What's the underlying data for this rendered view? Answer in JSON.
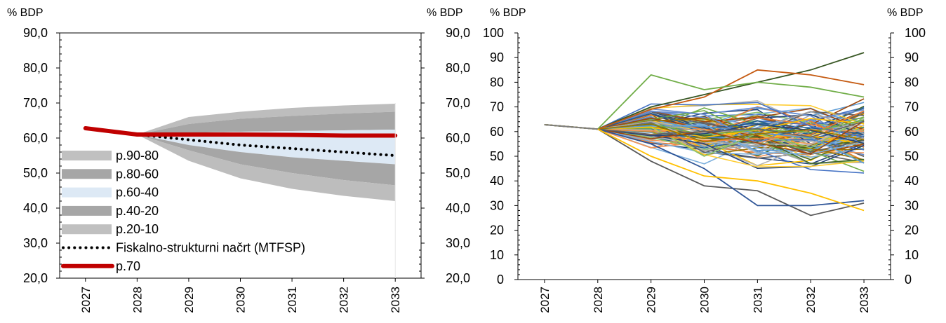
{
  "colors": {
    "band_outer": "#bdbdbd",
    "band_mid": "#a6a6a6",
    "band_center": "#dde9f5",
    "scenario_line": "#c00000",
    "mtfsp_line": "#000000"
  },
  "chart_data": [
    {
      "type": "area",
      "title": "",
      "ylabel_left": "% BDP",
      "ylabel_right": "% BDP",
      "ylim": [
        20,
        90
      ],
      "yticks": [
        "20,0",
        "30,0",
        "40,0",
        "50,0",
        "60,0",
        "70,0",
        "80,0",
        "90,0"
      ],
      "x": [
        "2027",
        "2028",
        "2029",
        "2030",
        "2031",
        "2032",
        "2033"
      ],
      "bands": [
        {
          "name": "p.90-80",
          "lower": [
            null,
            61.0,
            64.0,
            65.5,
            66.3,
            67.0,
            67.5
          ],
          "upper": [
            null,
            61.0,
            66.0,
            67.5,
            68.6,
            69.3,
            69.8
          ]
        },
        {
          "name": "p.80-60",
          "lower": [
            null,
            61.0,
            61.5,
            61.8,
            62.0,
            62.2,
            62.4
          ],
          "upper": [
            null,
            61.0,
            64.0,
            65.5,
            66.3,
            67.0,
            67.5
          ]
        },
        {
          "name": "p.60-40",
          "lower": [
            null,
            61.0,
            58.0,
            56.0,
            54.5,
            53.5,
            52.5
          ],
          "upper": [
            null,
            61.0,
            61.5,
            61.8,
            62.0,
            62.2,
            62.4
          ]
        },
        {
          "name": "p.40-20",
          "lower": [
            null,
            61.0,
            56.5,
            52.5,
            50.0,
            48.0,
            46.5
          ],
          "upper": [
            null,
            61.0,
            58.0,
            56.0,
            54.5,
            53.5,
            52.5
          ]
        },
        {
          "name": "p.20-10",
          "lower": [
            null,
            61.0,
            53.5,
            48.5,
            45.5,
            43.5,
            42.0
          ],
          "upper": [
            null,
            61.0,
            56.5,
            52.5,
            50.0,
            48.0,
            46.5
          ]
        }
      ],
      "series": [
        {
          "name": "Fiskalno-strukturni načrt (MTFSP)",
          "style": "dotted",
          "values": [
            null,
            61.0,
            59.5,
            58.0,
            57.0,
            56.0,
            55.0
          ]
        },
        {
          "name": "p.70",
          "style": "thick",
          "values": [
            62.8,
            61.0,
            61.0,
            61.0,
            60.9,
            60.7,
            60.7
          ]
        }
      ],
      "legend_placement": "lower-left",
      "grid": false
    },
    {
      "type": "line",
      "title": "",
      "ylabel_left": "% BDP",
      "ylabel_right": "% BDP",
      "ylim": [
        0,
        100
      ],
      "yticks": [
        "0",
        "10",
        "20",
        "30",
        "40",
        "50",
        "60",
        "70",
        "80",
        "90",
        "100"
      ],
      "x": [
        "2027",
        "2028",
        "2029",
        "2030",
        "2031",
        "2032",
        "2033"
      ],
      "start_values": [
        62.8,
        61.0
      ],
      "series_count": 100,
      "values_range_by_year": {
        "2029": [
          42,
          83
        ],
        "2030": [
          35,
          79
        ],
        "2031": [
          30,
          85
        ],
        "2032": [
          26,
          85
        ],
        "2033": [
          28,
          92
        ]
      },
      "grid": false
    }
  ],
  "legend": [
    {
      "label": "p.90-80",
      "color": "#c0c0c0"
    },
    {
      "label": "p.80-60",
      "color": "#a6a6a6"
    },
    {
      "label": "p.60-40",
      "color": "#dde9f5"
    },
    {
      "label": "p.40-20",
      "color": "#a6a6a6"
    },
    {
      "label": "p.20-10",
      "color": "#c0c0c0"
    },
    {
      "label": "Fiskalno-strukturni načrt (MTFSP)",
      "color": "#000000"
    },
    {
      "label": "p.70",
      "color": "#c00000"
    }
  ]
}
